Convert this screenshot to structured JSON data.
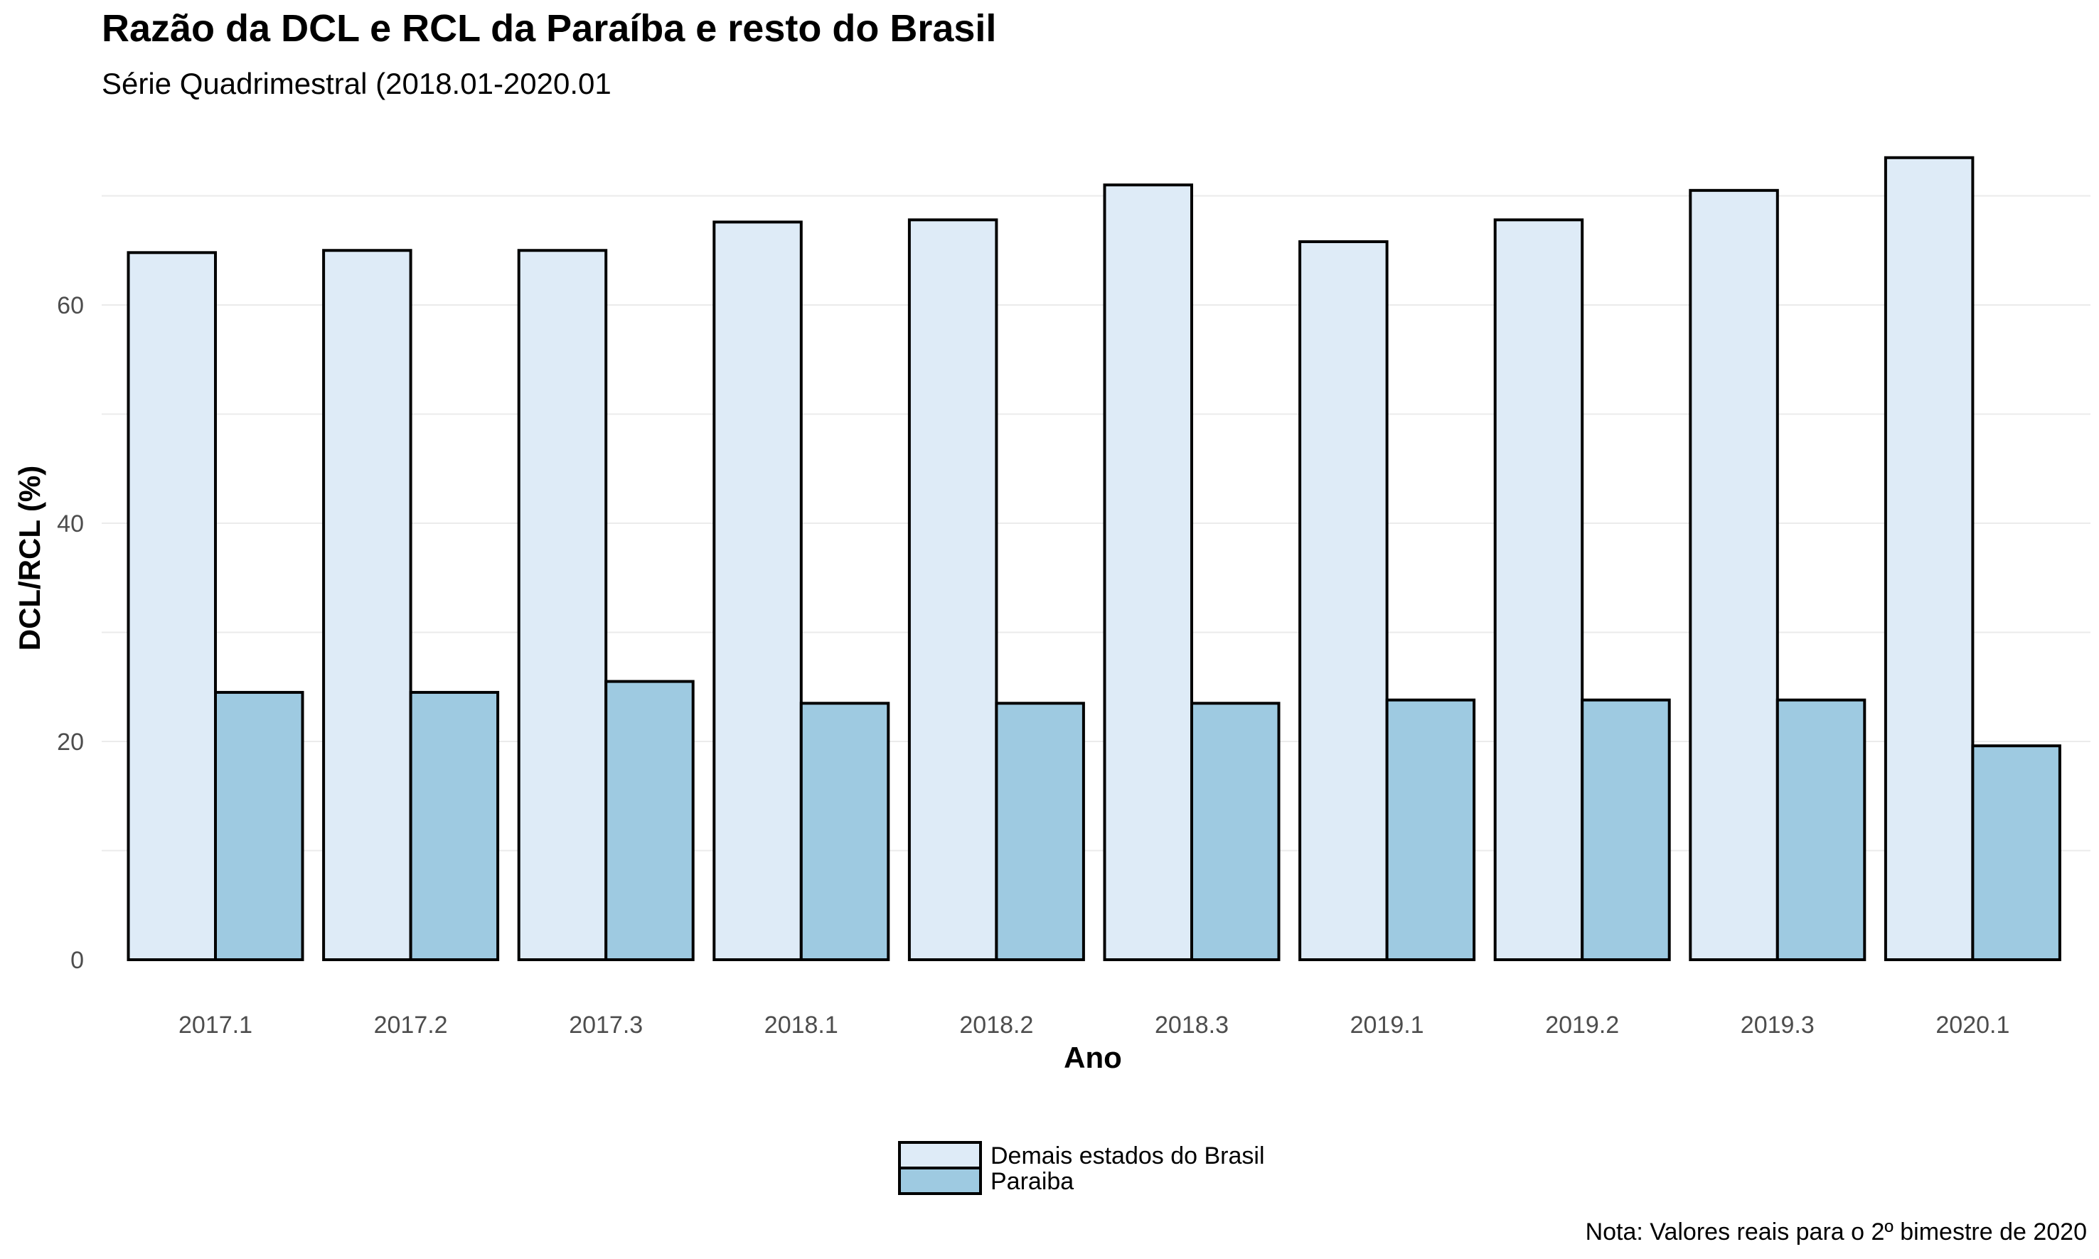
{
  "chart_data": {
    "type": "bar",
    "title": "Razão da DCL e RCL da Paraíba e resto do Brasil",
    "subtitle": "Série Quadrimestral (2018.01-2020.01",
    "xlabel": "Ano",
    "ylabel": "DCL/RCL (%)",
    "categories": [
      "2017.1",
      "2017.2",
      "2017.3",
      "2018.1",
      "2018.2",
      "2018.3",
      "2019.1",
      "2019.2",
      "2019.3",
      "2020.1"
    ],
    "series": [
      {
        "name": "Demais estados do Brasil",
        "color": "#deebf7",
        "values": [
          64.8,
          65.0,
          65.0,
          67.6,
          67.8,
          71.0,
          65.8,
          67.8,
          70.5,
          73.5
        ]
      },
      {
        "name": "Paraiba",
        "color": "#9ecae1",
        "values": [
          24.5,
          24.5,
          25.5,
          23.5,
          23.5,
          23.5,
          23.8,
          23.8,
          23.8,
          19.6
        ]
      }
    ],
    "ylim": [
      0,
      75
    ],
    "yticks": [
      0,
      20,
      40,
      60
    ],
    "ytick_labels": [
      "0",
      "20",
      "40",
      "60"
    ],
    "grid": true,
    "legend_position": "bottom",
    "note": "Nota: Valores reais para o 2º bimestre de 2020"
  }
}
